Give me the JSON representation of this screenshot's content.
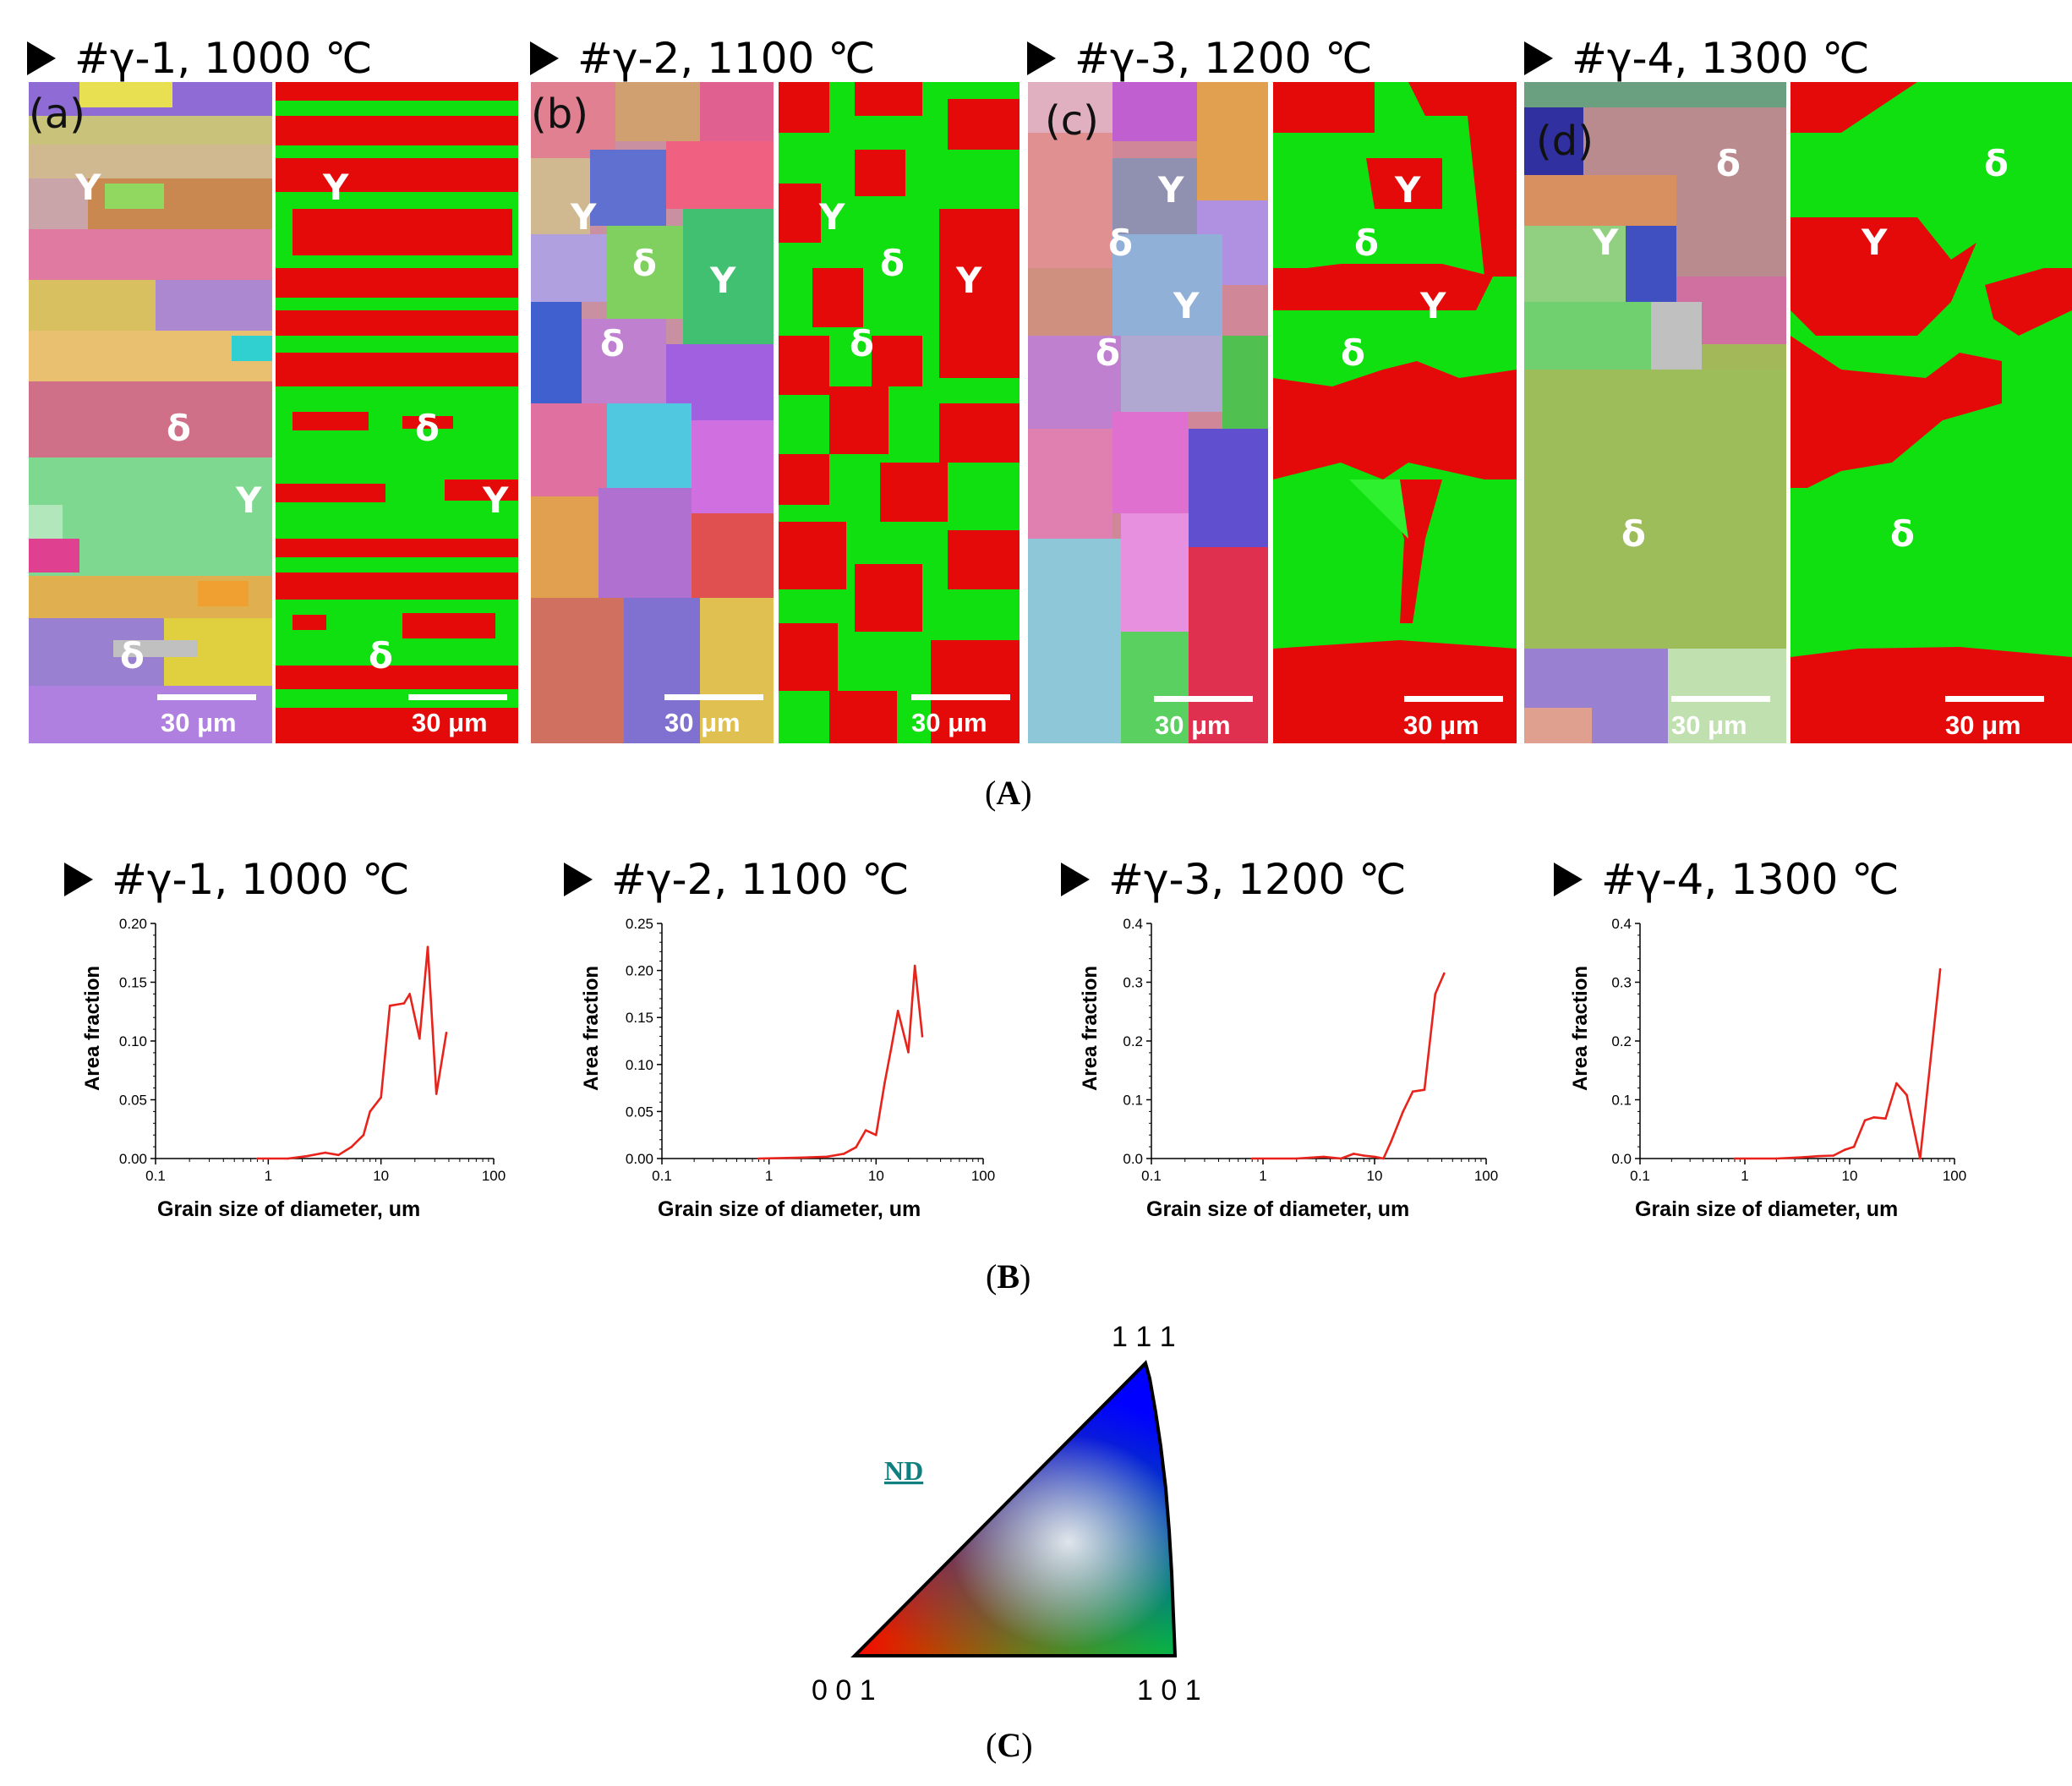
{
  "panel_titles": [
    "#γ-1, 1000 ℃",
    "#γ-2, 1100 ℃",
    "#γ-3, 1200 ℃",
    "#γ-4, 1300 ℃"
  ],
  "panel_letters": [
    "(a)",
    "(b)",
    "(c)",
    "(d)"
  ],
  "phase_labels": {
    "gamma": "Y",
    "delta": "δ"
  },
  "scale_bar": "30 μm",
  "captions": {
    "A": "A",
    "B": "B",
    "C": "C"
  },
  "colors": {
    "gamma_phase": "#e50a0a",
    "delta_phase": "#10e010",
    "curve": "#e8231b"
  },
  "chart_data": [
    {
      "type": "line",
      "title": "#γ-1, 1000 ℃",
      "xlabel": "Grain size of diameter, um",
      "ylabel": "Area fraction",
      "xscale": "log",
      "xlim": [
        0.1,
        100
      ],
      "ylim": [
        0,
        0.2
      ],
      "yticks": [
        "0.00",
        "0.05",
        "0.10",
        "0.15",
        "0.20"
      ],
      "xticks": [
        "0.1",
        "1",
        "10",
        "100"
      ],
      "x": [
        0.8,
        1.5,
        2.2,
        3.2,
        4.2,
        5.5,
        7.0,
        8.0,
        10.0,
        12.0,
        16.0,
        18.0,
        22.0,
        26.0,
        31.0,
        38.0
      ],
      "values": [
        0.0,
        0.0,
        0.002,
        0.005,
        0.003,
        0.01,
        0.02,
        0.04,
        0.052,
        0.13,
        0.132,
        0.14,
        0.102,
        0.18,
        0.055,
        0.107
      ]
    },
    {
      "type": "line",
      "title": "#γ-2, 1100 ℃",
      "xlabel": "Grain size of diameter, um",
      "ylabel": "Area fraction",
      "xscale": "log",
      "xlim": [
        0.1,
        100
      ],
      "ylim": [
        0,
        0.25
      ],
      "yticks": [
        "0.00",
        "0.05",
        "0.10",
        "0.15",
        "0.20",
        "0.25"
      ],
      "xticks": [
        "0.1",
        "1",
        "10",
        "100"
      ],
      "x": [
        0.8,
        2.0,
        3.5,
        5.0,
        6.5,
        8.0,
        10.0,
        12.0,
        14.0,
        16.0,
        20.0,
        23.0,
        27.0
      ],
      "values": [
        0.0,
        0.001,
        0.002,
        0.005,
        0.012,
        0.03,
        0.025,
        0.08,
        0.12,
        0.157,
        0.113,
        0.205,
        0.13
      ]
    },
    {
      "type": "line",
      "title": "#γ-3, 1200 ℃",
      "xlabel": "Grain size of diameter, um",
      "ylabel": "Area fraction",
      "xscale": "log",
      "xlim": [
        0.1,
        100
      ],
      "ylim": [
        0,
        0.4
      ],
      "yticks": [
        "0.0",
        "0.1",
        "0.2",
        "0.3",
        "0.4"
      ],
      "xticks": [
        "0.1",
        "1",
        "10",
        "100"
      ],
      "x": [
        0.8,
        2.0,
        3.5,
        5.0,
        6.5,
        8.0,
        10.0,
        12.0,
        14.0,
        18.0,
        22.0,
        28.0,
        35.0,
        42.0
      ],
      "values": [
        0.0,
        0.0,
        0.003,
        0.0,
        0.008,
        0.005,
        0.003,
        0.0,
        0.028,
        0.08,
        0.114,
        0.117,
        0.28,
        0.315
      ]
    },
    {
      "type": "line",
      "title": "#γ-4, 1300 ℃",
      "xlabel": "Grain size of diameter, um",
      "ylabel": "Area fraction",
      "xscale": "log",
      "xlim": [
        0.1,
        100
      ],
      "ylim": [
        0,
        0.4
      ],
      "yticks": [
        "0.0",
        "0.1",
        "0.2",
        "0.3",
        "0.4"
      ],
      "xticks": [
        "0.1",
        "1",
        "10",
        "100"
      ],
      "x": [
        0.8,
        2.0,
        3.5,
        5.0,
        7.0,
        9.0,
        11.0,
        14.0,
        17.0,
        22.0,
        28.0,
        35.0,
        47.0,
        73.0
      ],
      "values": [
        0.0,
        0.0,
        0.002,
        0.004,
        0.005,
        0.015,
        0.02,
        0.065,
        0.07,
        0.068,
        0.128,
        0.108,
        0.0,
        0.322
      ]
    }
  ],
  "ipf": {
    "legend_label": "ND",
    "corner_111": "1 1 1",
    "corner_001": "0 0 1",
    "corner_101": "1 0 1"
  }
}
